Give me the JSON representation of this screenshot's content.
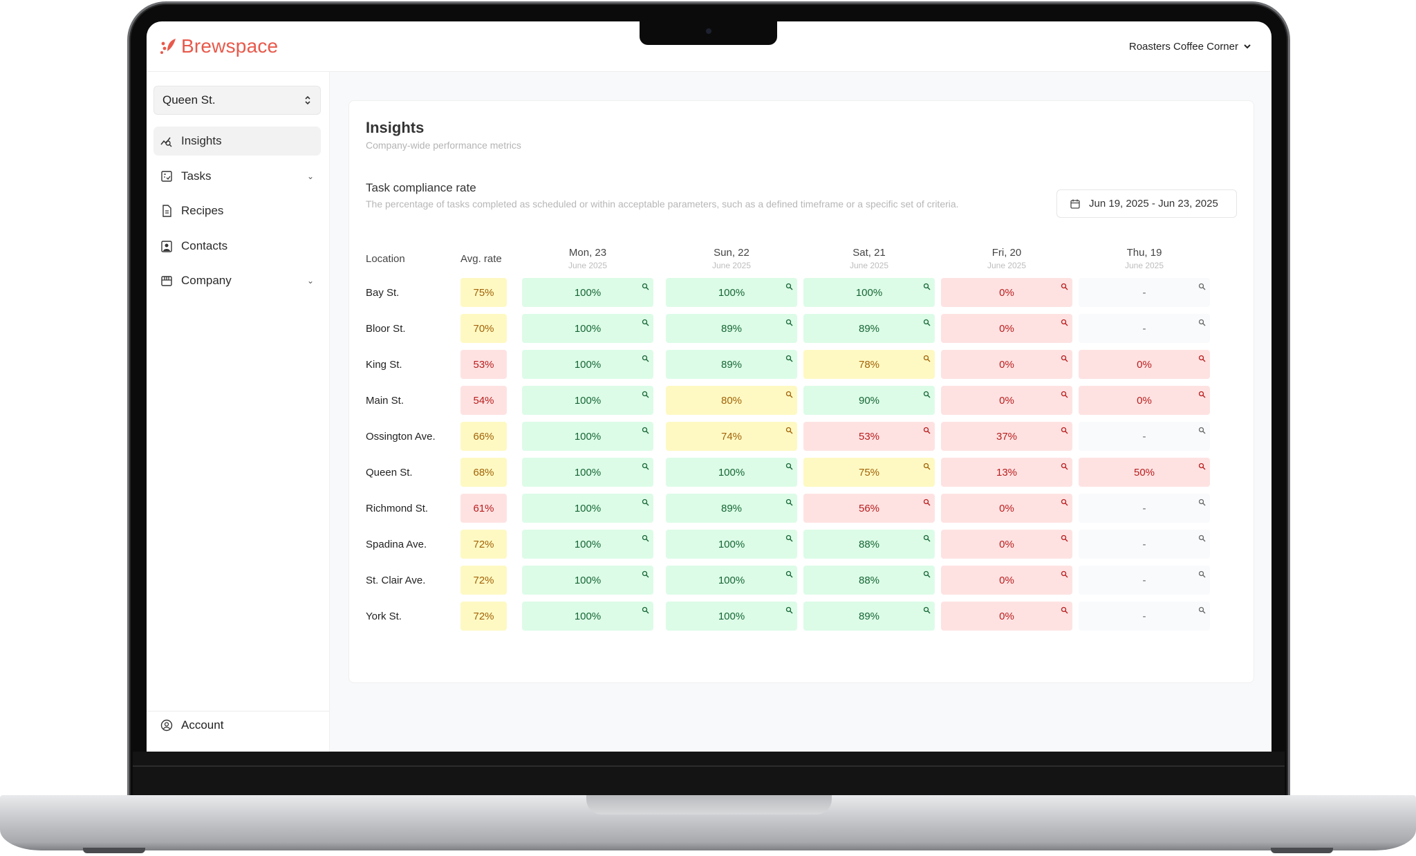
{
  "brand": {
    "name": "Brewspace",
    "color": "#e8594b"
  },
  "header": {
    "organization": "Roasters Coffee Corner"
  },
  "sidebar": {
    "location_selector": "Queen St.",
    "items": [
      {
        "label": "Insights",
        "icon": "insights-icon",
        "active": true,
        "expandable": false
      },
      {
        "label": "Tasks",
        "icon": "tasks-icon",
        "active": false,
        "expandable": true
      },
      {
        "label": "Recipes",
        "icon": "recipes-icon",
        "active": false,
        "expandable": false
      },
      {
        "label": "Contacts",
        "icon": "contacts-icon",
        "active": false,
        "expandable": false
      },
      {
        "label": "Company",
        "icon": "company-icon",
        "active": false,
        "expandable": true
      }
    ],
    "account": "Account"
  },
  "page": {
    "title": "Insights",
    "subtitle": "Company-wide performance metrics"
  },
  "section": {
    "title": "Task compliance rate",
    "description": "The percentage of tasks completed as scheduled or within acceptable parameters, such as a defined timeframe or a specific set of criteria.",
    "date_range": "Jun 19, 2025 - Jun 23, 2025"
  },
  "table": {
    "headers": {
      "location": "Location",
      "avg": "Avg. rate"
    },
    "days": [
      {
        "label": "Mon, 23",
        "sub": "June 2025"
      },
      {
        "label": "Sun, 22",
        "sub": "June 2025"
      },
      {
        "label": "Sat, 21",
        "sub": "June 2025"
      },
      {
        "label": "Fri, 20",
        "sub": "June 2025"
      },
      {
        "label": "Thu, 19",
        "sub": "June 2025"
      }
    ],
    "colors": {
      "green": "#dcfce7",
      "yellow": "#fef9c3",
      "red": "#fee2e2",
      "empty": "#f8fafc"
    },
    "rows": [
      {
        "location": "Bay St.",
        "avg": {
          "v": "75%",
          "tone": "yellow"
        },
        "cells": [
          {
            "v": "100%",
            "tone": "green"
          },
          {
            "v": "100%",
            "tone": "green"
          },
          {
            "v": "100%",
            "tone": "green"
          },
          {
            "v": "0%",
            "tone": "red"
          },
          {
            "v": "-",
            "tone": "empty"
          }
        ]
      },
      {
        "location": "Bloor St.",
        "avg": {
          "v": "70%",
          "tone": "yellow"
        },
        "cells": [
          {
            "v": "100%",
            "tone": "green"
          },
          {
            "v": "89%",
            "tone": "green"
          },
          {
            "v": "89%",
            "tone": "green"
          },
          {
            "v": "0%",
            "tone": "red"
          },
          {
            "v": "-",
            "tone": "empty"
          }
        ]
      },
      {
        "location": "King St.",
        "avg": {
          "v": "53%",
          "tone": "red"
        },
        "cells": [
          {
            "v": "100%",
            "tone": "green"
          },
          {
            "v": "89%",
            "tone": "green"
          },
          {
            "v": "78%",
            "tone": "yellow"
          },
          {
            "v": "0%",
            "tone": "red"
          },
          {
            "v": "0%",
            "tone": "red"
          }
        ]
      },
      {
        "location": "Main St.",
        "avg": {
          "v": "54%",
          "tone": "red"
        },
        "cells": [
          {
            "v": "100%",
            "tone": "green"
          },
          {
            "v": "80%",
            "tone": "yellow"
          },
          {
            "v": "90%",
            "tone": "green"
          },
          {
            "v": "0%",
            "tone": "red"
          },
          {
            "v": "0%",
            "tone": "red"
          }
        ]
      },
      {
        "location": "Ossington Ave.",
        "avg": {
          "v": "66%",
          "tone": "yellow"
        },
        "cells": [
          {
            "v": "100%",
            "tone": "green"
          },
          {
            "v": "74%",
            "tone": "yellow"
          },
          {
            "v": "53%",
            "tone": "red"
          },
          {
            "v": "37%",
            "tone": "red"
          },
          {
            "v": "-",
            "tone": "empty"
          }
        ]
      },
      {
        "location": "Queen St.",
        "avg": {
          "v": "68%",
          "tone": "yellow"
        },
        "cells": [
          {
            "v": "100%",
            "tone": "green"
          },
          {
            "v": "100%",
            "tone": "green"
          },
          {
            "v": "75%",
            "tone": "yellow"
          },
          {
            "v": "13%",
            "tone": "red"
          },
          {
            "v": "50%",
            "tone": "red"
          }
        ]
      },
      {
        "location": "Richmond St.",
        "avg": {
          "v": "61%",
          "tone": "red"
        },
        "cells": [
          {
            "v": "100%",
            "tone": "green"
          },
          {
            "v": "89%",
            "tone": "green"
          },
          {
            "v": "56%",
            "tone": "red"
          },
          {
            "v": "0%",
            "tone": "red"
          },
          {
            "v": "-",
            "tone": "empty"
          }
        ]
      },
      {
        "location": "Spadina Ave.",
        "avg": {
          "v": "72%",
          "tone": "yellow"
        },
        "cells": [
          {
            "v": "100%",
            "tone": "green"
          },
          {
            "v": "100%",
            "tone": "green"
          },
          {
            "v": "88%",
            "tone": "green"
          },
          {
            "v": "0%",
            "tone": "red"
          },
          {
            "v": "-",
            "tone": "empty"
          }
        ]
      },
      {
        "location": "St. Clair Ave.",
        "avg": {
          "v": "72%",
          "tone": "yellow"
        },
        "cells": [
          {
            "v": "100%",
            "tone": "green"
          },
          {
            "v": "100%",
            "tone": "green"
          },
          {
            "v": "88%",
            "tone": "green"
          },
          {
            "v": "0%",
            "tone": "red"
          },
          {
            "v": "-",
            "tone": "empty"
          }
        ]
      },
      {
        "location": "York St.",
        "avg": {
          "v": "72%",
          "tone": "yellow"
        },
        "cells": [
          {
            "v": "100%",
            "tone": "green"
          },
          {
            "v": "100%",
            "tone": "green"
          },
          {
            "v": "89%",
            "tone": "green"
          },
          {
            "v": "0%",
            "tone": "red"
          },
          {
            "v": "-",
            "tone": "empty"
          }
        ]
      }
    ]
  }
}
